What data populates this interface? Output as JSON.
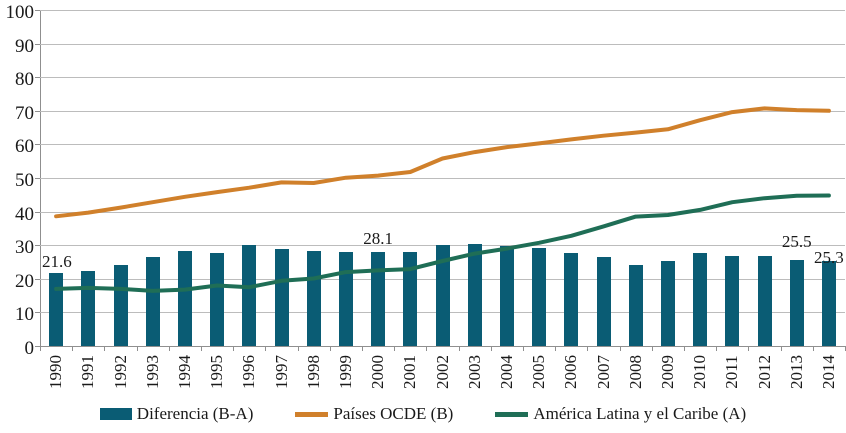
{
  "chart_data": {
    "type": "combo-bar-line",
    "title": "",
    "xlabel": "",
    "ylabel": "",
    "categories": [
      "1990",
      "1991",
      "1992",
      "1993",
      "1994",
      "1995",
      "1996",
      "1997",
      "1998",
      "1999",
      "2000",
      "2001",
      "2002",
      "2003",
      "2004",
      "2005",
      "2006",
      "2007",
      "2008",
      "2009",
      "2010",
      "2011",
      "2012",
      "2013",
      "2014"
    ],
    "series": [
      {
        "name": "Diferencia (B-A)",
        "type": "bar",
        "color": "#0A5C74",
        "values": [
          21.6,
          22.4,
          24.2,
          26.6,
          28.3,
          27.8,
          30.2,
          28.9,
          28.3,
          28.1,
          28.1,
          27.9,
          30.0,
          30.3,
          29.7,
          29.3,
          27.7,
          26.4,
          24.1,
          25.2,
          27.6,
          26.9,
          26.8,
          25.5,
          25.3
        ]
      },
      {
        "name": "Países OCDE (B)",
        "type": "line",
        "color": "#D0802B",
        "values": [
          38.6,
          39.7,
          41.2,
          42.8,
          44.4,
          45.8,
          47.1,
          48.7,
          48.5,
          50.1,
          50.7,
          51.8,
          55.8,
          57.7,
          59.2,
          60.3,
          61.5,
          62.6,
          63.5,
          64.5,
          67.2,
          69.6,
          70.7,
          70.2,
          70.0
        ]
      },
      {
        "name": "América Latina y el Caribe (A)",
        "type": "line",
        "color": "#1F6E56",
        "values": [
          17.0,
          17.3,
          17.0,
          16.4,
          16.8,
          18.0,
          17.5,
          19.4,
          20.1,
          22.0,
          22.5,
          22.9,
          25.3,
          27.5,
          29.0,
          30.7,
          32.8,
          35.6,
          38.5,
          39.0,
          40.5,
          42.8,
          44.0,
          44.7,
          44.8
        ]
      }
    ],
    "ylim": [
      0,
      100
    ],
    "yticks": [
      0,
      10,
      20,
      30,
      40,
      50,
      60,
      70,
      80,
      90,
      100
    ],
    "grid": true,
    "legend_position": "bottom",
    "annotations": [
      {
        "text": "21.6",
        "x": "1990",
        "top_value": 27.6,
        "align": "left"
      },
      {
        "text": "28.1",
        "x": "2000",
        "top_value": 34.4,
        "align": "center"
      },
      {
        "text": "25.5",
        "x": "2013",
        "top_value": 33.6,
        "align": "center"
      },
      {
        "text": "25.3",
        "x": "2014",
        "top_value": 29.0,
        "align": "center"
      }
    ]
  }
}
